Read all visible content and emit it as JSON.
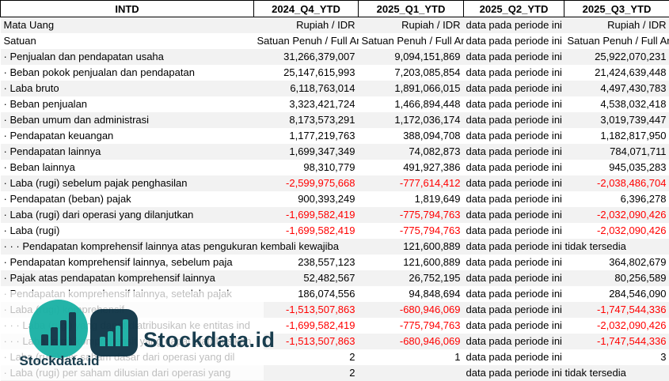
{
  "colors": {
    "negative": "#ff0000",
    "row_band": "#f2f2f2",
    "brand_teal": "#18b1a4",
    "brand_navy": "#0d3345"
  },
  "watermark": {
    "brand": "Stockdata.id"
  },
  "table": {
    "corner_header": "INTD",
    "period_headers": [
      "2024_Q4_YTD",
      "2025_Q1_YTD",
      "2025_Q2_YTD",
      "2025_Q3_YTD"
    ],
    "na_text": "data pada periode ini tidak tersedia",
    "rows": [
      {
        "label": "Mata Uang",
        "cells": [
          {
            "t": "txtr",
            "v": "Rupiah / IDR"
          },
          {
            "t": "txtr",
            "v": "Rupiah / IDR"
          },
          {
            "t": "na"
          },
          {
            "t": "txtr",
            "v": "Rupiah / IDR"
          }
        ]
      },
      {
        "label": "Satuan",
        "cells": [
          {
            "t": "txtl",
            "v": "Satuan Penuh / Full Amount"
          },
          {
            "t": "txtl",
            "v": "Satuan Penuh / Full Amount"
          },
          {
            "t": "na"
          },
          {
            "t": "txtl",
            "v": "Satuan Penuh / Full Amount"
          }
        ]
      },
      {
        "label": "· Penjualan dan pendapatan usaha",
        "cells": [
          {
            "t": "num",
            "v": "31,266,379,007"
          },
          {
            "t": "num",
            "v": "9,094,151,869"
          },
          {
            "t": "na"
          },
          {
            "t": "num",
            "v": "25,922,070,231"
          }
        ]
      },
      {
        "label": "· Beban pokok penjualan dan pendapatan",
        "cells": [
          {
            "t": "num",
            "v": "25,147,615,993"
          },
          {
            "t": "num",
            "v": "7,203,085,854"
          },
          {
            "t": "na"
          },
          {
            "t": "num",
            "v": "21,424,639,448"
          }
        ]
      },
      {
        "label": "· Laba bruto",
        "cells": [
          {
            "t": "num",
            "v": "6,118,763,014"
          },
          {
            "t": "num",
            "v": "1,891,066,015"
          },
          {
            "t": "na"
          },
          {
            "t": "num",
            "v": "4,497,430,783"
          }
        ]
      },
      {
        "label": "· Beban penjualan",
        "cells": [
          {
            "t": "num",
            "v": "3,323,421,724"
          },
          {
            "t": "num",
            "v": "1,466,894,448"
          },
          {
            "t": "na"
          },
          {
            "t": "num",
            "v": "4,538,032,418"
          }
        ]
      },
      {
        "label": "· Beban umum dan administrasi",
        "cells": [
          {
            "t": "num",
            "v": "8,173,573,291"
          },
          {
            "t": "num",
            "v": "1,172,036,174"
          },
          {
            "t": "na"
          },
          {
            "t": "num",
            "v": "3,019,739,447"
          }
        ]
      },
      {
        "label": "· Pendapatan keuangan",
        "cells": [
          {
            "t": "num",
            "v": "1,177,219,763"
          },
          {
            "t": "num",
            "v": "388,094,708"
          },
          {
            "t": "na"
          },
          {
            "t": "num",
            "v": "1,182,817,950"
          }
        ]
      },
      {
        "label": "· Pendapatan lainnya",
        "cells": [
          {
            "t": "num",
            "v": "1,699,347,349"
          },
          {
            "t": "num",
            "v": "74,082,873"
          },
          {
            "t": "na"
          },
          {
            "t": "num",
            "v": "784,071,711"
          }
        ]
      },
      {
        "label": "· Beban lainnya",
        "cells": [
          {
            "t": "num",
            "v": "98,310,779"
          },
          {
            "t": "num",
            "v": "491,927,386"
          },
          {
            "t": "na"
          },
          {
            "t": "num",
            "v": "945,035,283"
          }
        ]
      },
      {
        "label": "· Laba (rugi) sebelum pajak penghasilan",
        "cells": [
          {
            "t": "neg",
            "v": "-2,599,975,668"
          },
          {
            "t": "neg",
            "v": "-777,614,412"
          },
          {
            "t": "na"
          },
          {
            "t": "neg",
            "v": "-2,038,486,704"
          }
        ]
      },
      {
        "label": "· Pendapatan (beban) pajak",
        "cells": [
          {
            "t": "num",
            "v": "900,393,249"
          },
          {
            "t": "num",
            "v": "1,819,649"
          },
          {
            "t": "na"
          },
          {
            "t": "num",
            "v": "6,396,278"
          }
        ]
      },
      {
        "label": "· Laba (rugi) dari operasi yang dilanjutkan",
        "cells": [
          {
            "t": "neg",
            "v": "-1,699,582,419"
          },
          {
            "t": "neg",
            "v": "-775,794,763"
          },
          {
            "t": "na"
          },
          {
            "t": "neg",
            "v": "-2,032,090,426"
          }
        ]
      },
      {
        "label": "· Laba (rugi)",
        "cells": [
          {
            "t": "neg",
            "v": "-1,699,582,419"
          },
          {
            "t": "neg",
            "v": "-775,794,763"
          },
          {
            "t": "na"
          },
          {
            "t": "neg",
            "v": "-2,032,090,426"
          }
        ]
      },
      {
        "label": "· · · Pendapatan komprehensif lainnya atas pengukuran kembali kewajiba",
        "label_span": 2,
        "cells": [
          {
            "t": "num",
            "v": "121,600,889"
          },
          {
            "t": "na",
            "span": 2
          }
        ]
      },
      {
        "label": "· Pendapatan komprehensif lainnya, sebelum paja",
        "cells": [
          {
            "t": "num",
            "v": "238,557,123"
          },
          {
            "t": "num",
            "v": "121,600,889"
          },
          {
            "t": "na"
          },
          {
            "t": "num",
            "v": "364,802,679"
          }
        ]
      },
      {
        "label": "· Pajak atas pendapatan komprehensif lainnya",
        "cells": [
          {
            "t": "num",
            "v": "52,482,567"
          },
          {
            "t": "num",
            "v": "26,752,195"
          },
          {
            "t": "na"
          },
          {
            "t": "num",
            "v": "80,256,589"
          }
        ]
      },
      {
        "label": "· Pendapatan komprehensif lainnya, setelah pajak",
        "cells": [
          {
            "t": "num",
            "v": "186,074,556"
          },
          {
            "t": "num",
            "v": "94,848,694"
          },
          {
            "t": "na"
          },
          {
            "t": "num",
            "v": "284,546,090"
          }
        ]
      },
      {
        "label": "· Laba (rugi) komprehensif",
        "cells": [
          {
            "t": "neg",
            "v": "-1,513,507,863"
          },
          {
            "t": "neg",
            "v": "-680,946,069"
          },
          {
            "t": "na"
          },
          {
            "t": "neg",
            "v": "-1,747,544,336"
          }
        ]
      },
      {
        "label": "· · · Laba (rugi) yang dapat diatribusikan ke entitas ind",
        "cells": [
          {
            "t": "neg",
            "v": "-1,699,582,419"
          },
          {
            "t": "neg",
            "v": "-775,794,763"
          },
          {
            "t": "na"
          },
          {
            "t": "neg",
            "v": "-2,032,090,426"
          }
        ]
      },
      {
        "label": "· · · Laba (rugi) komprehensif yang dapat diatribusikan",
        "cells": [
          {
            "t": "neg",
            "v": "-1,513,507,863"
          },
          {
            "t": "neg",
            "v": "-680,946,069"
          },
          {
            "t": "na"
          },
          {
            "t": "neg",
            "v": "-1,747,544,336"
          }
        ]
      },
      {
        "label": "· Laba (rugi) per saham dasar dari operasi yang dil",
        "cells": [
          {
            "t": "num",
            "v": "2"
          },
          {
            "t": "num",
            "v": "1"
          },
          {
            "t": "na"
          },
          {
            "t": "num",
            "v": "3"
          }
        ]
      },
      {
        "label": "· Laba (rugi) per saham dilusian dari operasi yang",
        "cells": [
          {
            "t": "num",
            "v": "2"
          },
          {
            "t": "empty"
          },
          {
            "t": "na",
            "span": 2
          }
        ]
      }
    ]
  }
}
